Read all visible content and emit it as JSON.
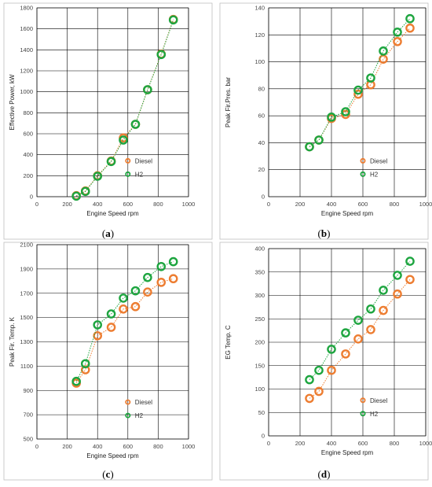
{
  "colors": {
    "diesel": "#ED7D31",
    "h2": "#1DA53F",
    "grid": "#000000",
    "frame": "#bfbfbf"
  },
  "chart_data": [
    {
      "type": "scatter",
      "panel_label": "a",
      "xlabel": "Engine Speed rpm",
      "ylabel": "Effective Power, kW",
      "xlim": [
        0,
        1000
      ],
      "ylim": [
        0,
        1800
      ],
      "x_ticks": [
        0,
        200,
        400,
        600,
        800,
        1000
      ],
      "y_ticks": [
        0,
        200,
        400,
        600,
        800,
        1000,
        1200,
        1400,
        1600,
        1800
      ],
      "x_tick_labels": [
        "0",
        "200",
        "400",
        "600",
        "800",
        "1000"
      ],
      "y_tick_labels": [
        "0",
        "200",
        "400",
        "600",
        "800",
        "1000",
        "1200",
        "1400",
        "1600",
        "1800"
      ],
      "grid": true,
      "legend_position": "lower-right",
      "series": [
        {
          "name": "Diesel",
          "color_key": "diesel",
          "x": [
            260,
            320,
            400,
            490,
            570,
            650,
            730,
            820,
            900
          ],
          "y": [
            10,
            55,
            200,
            340,
            560,
            690,
            1020,
            1360,
            1690
          ]
        },
        {
          "name": "H2",
          "color_key": "h2",
          "x": [
            260,
            320,
            400,
            490,
            570,
            650,
            730,
            820,
            900
          ],
          "y": [
            5,
            50,
            195,
            335,
            540,
            690,
            1020,
            1355,
            1685
          ]
        }
      ]
    },
    {
      "type": "scatter",
      "panel_label": "b",
      "xlabel": "Engine Speed rpm",
      "ylabel": "Peak Fir.Pres. bar",
      "xlim": [
        0,
        1000
      ],
      "ylim": [
        0,
        140
      ],
      "x_ticks": [
        0,
        200,
        400,
        600,
        800,
        1000
      ],
      "y_ticks": [
        0,
        20,
        40,
        60,
        80,
        100,
        120,
        140
      ],
      "x_tick_labels": [
        "0",
        "200",
        "400",
        "600",
        "800",
        "1000"
      ],
      "y_tick_labels": [
        "0",
        "20",
        "40",
        "60",
        "80",
        "100",
        "120",
        "140"
      ],
      "grid": true,
      "legend_position": "lower-right",
      "series": [
        {
          "name": "Diesel",
          "color_key": "diesel",
          "x": [
            260,
            320,
            400,
            490,
            570,
            650,
            730,
            820,
            900
          ],
          "y": [
            37,
            42,
            58,
            61,
            76,
            83,
            102,
            115,
            125
          ]
        },
        {
          "name": "H2",
          "color_key": "h2",
          "x": [
            260,
            320,
            400,
            490,
            570,
            650,
            730,
            820,
            900
          ],
          "y": [
            37,
            42,
            59,
            63,
            79,
            88,
            108,
            122,
            132
          ]
        }
      ]
    },
    {
      "type": "scatter",
      "panel_label": "c",
      "xlabel": "Engine Speed rpm",
      "ylabel": "Peak Fir. Temp. K",
      "xlim": [
        0,
        1000
      ],
      "ylim": [
        500,
        2100
      ],
      "x_ticks": [
        0,
        200,
        400,
        600,
        800,
        1000
      ],
      "y_ticks": [
        500,
        700,
        900,
        1100,
        1300,
        1500,
        1700,
        1900,
        2100
      ],
      "x_tick_labels": [
        "0",
        "200",
        "400",
        "600",
        "800",
        "1000"
      ],
      "y_tick_labels": [
        "500",
        "700",
        "900",
        "1100",
        "1300",
        "1500",
        "1700",
        "1900",
        "2100"
      ],
      "grid": true,
      "legend_position": "lower-right",
      "series": [
        {
          "name": "Diesel",
          "color_key": "diesel",
          "x": [
            260,
            320,
            400,
            490,
            570,
            650,
            730,
            820,
            900
          ],
          "y": [
            960,
            1070,
            1350,
            1420,
            1570,
            1590,
            1710,
            1790,
            1820
          ]
        },
        {
          "name": "H2",
          "color_key": "h2",
          "x": [
            260,
            320,
            400,
            490,
            570,
            650,
            730,
            820,
            900
          ],
          "y": [
            975,
            1120,
            1440,
            1530,
            1660,
            1720,
            1830,
            1920,
            1960
          ]
        }
      ]
    },
    {
      "type": "scatter",
      "panel_label": "d",
      "xlabel": "Engine Speed rpm",
      "ylabel": "EG Temp. C",
      "xlim": [
        0,
        1000
      ],
      "ylim": [
        0,
        400
      ],
      "x_ticks": [
        0,
        200,
        400,
        600,
        800,
        1000
      ],
      "y_ticks": [
        0,
        50,
        100,
        150,
        200,
        250,
        300,
        350,
        400
      ],
      "x_tick_labels": [
        "0",
        "200",
        "400",
        "600",
        "800",
        "1000"
      ],
      "y_tick_labels": [
        "0",
        "50",
        "100",
        "150",
        "200",
        "250",
        "300",
        "350",
        "400"
      ],
      "grid": true,
      "legend_position": "lower-right",
      "series": [
        {
          "name": "Diesel",
          "color_key": "diesel",
          "x": [
            260,
            320,
            400,
            490,
            570,
            650,
            730,
            820,
            900
          ],
          "y": [
            80,
            95,
            140,
            175,
            207,
            227,
            268,
            303,
            334
          ]
        },
        {
          "name": "H2",
          "color_key": "h2",
          "x": [
            260,
            320,
            400,
            490,
            570,
            650,
            730,
            820,
            900
          ],
          "y": [
            120,
            140,
            185,
            220,
            247,
            271,
            311,
            343,
            373
          ]
        }
      ]
    }
  ]
}
